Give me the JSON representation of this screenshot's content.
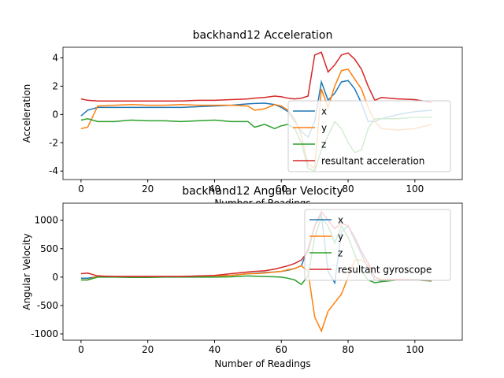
{
  "chart_data": [
    {
      "type": "line",
      "title": "backhand12 Acceleration",
      "xlabel": "Number of Readings",
      "ylabel": "Acceleration",
      "x": [
        0,
        2,
        5,
        10,
        15,
        20,
        25,
        30,
        35,
        40,
        45,
        50,
        52,
        55,
        58,
        60,
        62,
        64,
        66,
        68,
        70,
        72,
        74,
        76,
        78,
        80,
        82,
        84,
        86,
        88,
        90,
        95,
        100,
        105
      ],
      "series": [
        {
          "name": "x",
          "color": "#1f77b4",
          "values": [
            -0.1,
            0.3,
            0.5,
            0.5,
            0.5,
            0.5,
            0.5,
            0.5,
            0.55,
            0.6,
            0.65,
            0.75,
            0.78,
            0.8,
            0.7,
            0.5,
            0.2,
            -0.5,
            -1.2,
            -1.6,
            -0.5,
            2.3,
            1.0,
            1.5,
            2.3,
            2.4,
            1.8,
            0.8,
            -0.5,
            -0.5,
            -0.3,
            0,
            0.2,
            0.3
          ]
        },
        {
          "name": "y",
          "color": "#ff7f0e",
          "values": [
            -1.0,
            -0.9,
            0.6,
            0.65,
            0.7,
            0.65,
            0.65,
            0.7,
            0.65,
            0.65,
            0.65,
            0.6,
            0.3,
            0.4,
            0.7,
            0.6,
            0.3,
            -0.3,
            -1.5,
            -3.5,
            -3.8,
            1.8,
            0.5,
            2.0,
            3.1,
            3.2,
            2.5,
            1.8,
            0.5,
            -0.5,
            -1.0,
            -1.1,
            -1.0,
            -0.7
          ]
        },
        {
          "name": "z",
          "color": "#2ca02c",
          "values": [
            -0.4,
            -0.3,
            -0.5,
            -0.5,
            -0.4,
            -0.45,
            -0.45,
            -0.5,
            -0.45,
            -0.4,
            -0.5,
            -0.5,
            -0.9,
            -0.7,
            -1.0,
            -0.8,
            -0.7,
            -1.0,
            -2.0,
            -3.8,
            -4.0,
            -2.5,
            -1.5,
            -0.5,
            -1.0,
            -2.0,
            -2.7,
            -2.5,
            -1.0,
            -0.3,
            -0.3,
            -0.3,
            -0.2,
            -0.2
          ]
        },
        {
          "name": "resultant acceleration",
          "color": "#d62728",
          "values": [
            1.1,
            1.0,
            0.95,
            0.95,
            0.95,
            0.95,
            0.95,
            0.95,
            1.0,
            1.0,
            1.05,
            1.1,
            1.15,
            1.2,
            1.3,
            1.25,
            1.15,
            1.1,
            1.15,
            1.3,
            4.2,
            4.4,
            3.0,
            3.5,
            4.2,
            4.35,
            3.9,
            3.2,
            2.0,
            1.0,
            1.2,
            1.1,
            1.05,
            0.85
          ]
        }
      ],
      "xlim": [
        -5.4,
        114.2
      ],
      "xticks": [
        0,
        20,
        40,
        60,
        80,
        100
      ],
      "ylim": [
        -4.6,
        4.75
      ],
      "yticks": [
        -4,
        -2,
        0,
        2,
        4
      ],
      "legend": "lower right"
    },
    {
      "type": "line",
      "title": "backhand12 Angular Velocity",
      "xlabel": "Number of Readings",
      "ylabel": "Angular Velocity",
      "x": [
        0,
        2,
        5,
        10,
        15,
        20,
        25,
        30,
        35,
        40,
        45,
        50,
        52,
        55,
        58,
        60,
        62,
        64,
        66,
        68,
        70,
        72,
        74,
        76,
        78,
        80,
        82,
        84,
        86,
        88,
        90,
        95,
        100,
        105
      ],
      "series": [
        {
          "name": "x",
          "color": "#1f77b4",
          "values": [
            -20,
            -20,
            10,
            10,
            10,
            10,
            10,
            10,
            15,
            20,
            30,
            60,
            65,
            80,
            90,
            100,
            120,
            150,
            200,
            500,
            900,
            1100,
            100,
            -100,
            800,
            900,
            650,
            400,
            150,
            -50,
            -60,
            -50,
            -40,
            -60
          ]
        },
        {
          "name": "y",
          "color": "#ff7f0e",
          "values": [
            -50,
            -50,
            20,
            10,
            10,
            10,
            10,
            10,
            15,
            20,
            30,
            60,
            60,
            70,
            90,
            100,
            130,
            150,
            200,
            100,
            -700,
            -950,
            -600,
            -450,
            -300,
            0,
            300,
            300,
            200,
            0,
            -40,
            -40,
            -50,
            -60
          ]
        },
        {
          "name": "z",
          "color": "#2ca02c",
          "values": [
            -50,
            -50,
            0,
            0,
            -5,
            -5,
            0,
            0,
            0,
            0,
            5,
            20,
            15,
            10,
            5,
            0,
            -20,
            -50,
            -130,
            20,
            700,
            1050,
            900,
            600,
            900,
            700,
            400,
            100,
            -50,
            -100,
            -80,
            -50,
            -50,
            -70
          ]
        },
        {
          "name": "resultant gyroscope",
          "color": "#d62728",
          "values": [
            60,
            70,
            20,
            10,
            10,
            10,
            10,
            10,
            20,
            30,
            60,
            90,
            100,
            110,
            140,
            170,
            200,
            240,
            300,
            450,
            900,
            1150,
            1000,
            850,
            950,
            900,
            700,
            450,
            250,
            0,
            -50,
            -40,
            -50,
            -60
          ]
        }
      ],
      "xlim": [
        -5.4,
        114.2
      ],
      "xticks": [
        0,
        20,
        40,
        60,
        80,
        100
      ],
      "ylim": [
        -1110,
        1300
      ],
      "yticks": [
        -1000,
        -500,
        0,
        500,
        1000
      ],
      "legend": "upper right"
    }
  ]
}
